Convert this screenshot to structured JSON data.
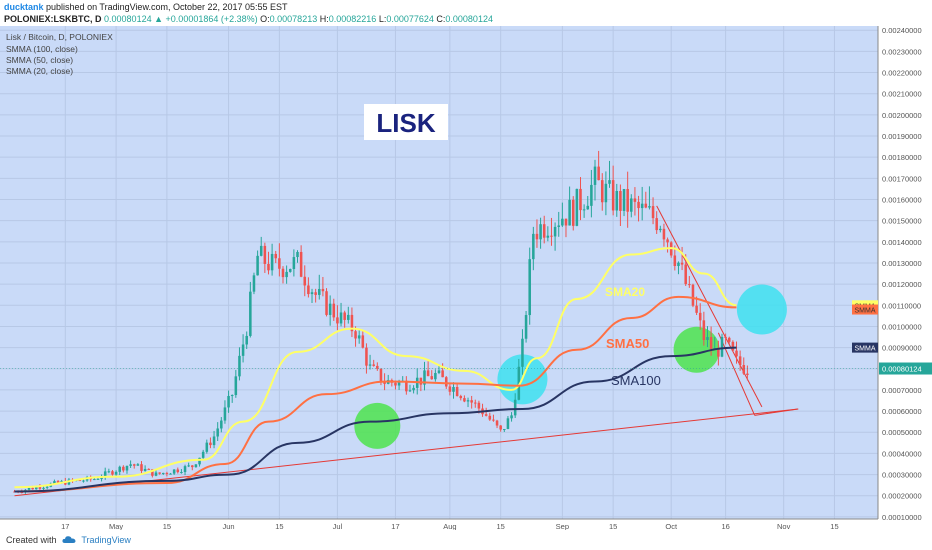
{
  "header": {
    "author": "ducktank",
    "published_text": "published on TradingView.com, October 22, 2017 05:55 EST",
    "symbol": "POLONIEX:LSKBTC, D",
    "last": "0.00080124",
    "change": "+0.00001864 (+2.38%)",
    "open_label": "O:",
    "open": "0.00078213",
    "high_label": "H:",
    "high": "0.00082216",
    "low_label": "L:",
    "low": "0.00077624",
    "close_label": "C:",
    "close": "0.00080124",
    "up_color": "#26a69a"
  },
  "legend": {
    "title": "Lisk / Bitcoin, D, POLONIEX",
    "studies": [
      "SMMA (100, close)",
      "SMMA (50, close)",
      "SMMA (20, close)"
    ]
  },
  "annotation": {
    "title": "LISK",
    "sma20_label": "SMA20",
    "sma50_label": "SMA50",
    "sma100_label": "SMA100"
  },
  "price_badges": {
    "smma_label": "SMMA",
    "last_price": "0.00080124"
  },
  "footer": {
    "created_with": "Created with",
    "brand": "TradingView"
  },
  "colors": {
    "background": "#c9daf8",
    "candle_up": "#26a69a",
    "candle_down": "#ef5350",
    "sma20": "#ffff66",
    "sma50": "#ff7043",
    "sma100": "#283563",
    "trendline": "#e53935",
    "circle_green": "#4ee34e",
    "circle_cyan": "#3ee0f0"
  },
  "chart_data": {
    "type": "line",
    "title": "Lisk / Bitcoin, D, POLONIEX",
    "xlabel": "",
    "ylabel": "",
    "ylim": [
      9e-05,
      0.00242
    ],
    "x_tick_labels": [
      "17",
      "May",
      "15",
      "Jun",
      "15",
      "Jul",
      "17",
      "Aug",
      "15",
      "Sep",
      "15",
      "Oct",
      "16",
      "Nov",
      "15"
    ],
    "x_tick_dates": [
      "2017-04-17",
      "2017-05-01",
      "2017-05-15",
      "2017-06-01",
      "2017-06-15",
      "2017-07-01",
      "2017-07-17",
      "2017-08-01",
      "2017-08-15",
      "2017-09-01",
      "2017-09-15",
      "2017-10-01",
      "2017-10-16",
      "2017-11-01",
      "2017-11-15"
    ],
    "y_ticks": [
      0.0001,
      0.0002,
      0.0003,
      0.0004,
      0.0005,
      0.0006,
      0.0007,
      0.0008,
      0.0009,
      0.001,
      0.0011,
      0.0012,
      0.0013,
      0.0014,
      0.0015,
      0.0016,
      0.0017,
      0.0018,
      0.0019,
      0.002,
      0.0021,
      0.0022,
      0.0023,
      0.0024
    ],
    "y_tick_labels": [
      "0.00010000",
      "0.00020000",
      "0.00030000",
      "0.00040000",
      "0.00050000",
      "0.00060000",
      "0.00070000",
      "0.00080000",
      "0.00090000",
      "0.00100000",
      "0.00110000",
      "0.00120000",
      "0.00130000",
      "0.00140000",
      "0.00150000",
      "0.00160000",
      "0.00170000",
      "0.00180000",
      "0.00190000",
      "0.00200000",
      "0.00210000",
      "0.00220000",
      "0.00230000",
      "0.00240000"
    ],
    "price_anchors": [
      [
        "2017-04-03",
        0.00022
      ],
      [
        "2017-04-15",
        0.00026
      ],
      [
        "2017-04-25",
        0.00028
      ],
      [
        "2017-05-05",
        0.00035
      ],
      [
        "2017-05-12",
        0.0003
      ],
      [
        "2017-05-22",
        0.00034
      ],
      [
        "2017-05-28",
        0.00048
      ],
      [
        "2017-06-02",
        0.00068
      ],
      [
        "2017-06-06",
        0.001
      ],
      [
        "2017-06-09",
        0.00133
      ],
      [
        "2017-06-14",
        0.00128
      ],
      [
        "2017-06-20",
        0.0013
      ],
      [
        "2017-06-25",
        0.00115
      ],
      [
        "2017-07-01",
        0.00105
      ],
      [
        "2017-07-06",
        0.00098
      ],
      [
        "2017-07-10",
        0.0008
      ],
      [
        "2017-07-14",
        0.00074
      ],
      [
        "2017-07-20",
        0.00073
      ],
      [
        "2017-07-28",
        0.00077
      ],
      [
        "2017-08-03",
        0.0007
      ],
      [
        "2017-08-10",
        0.0006
      ],
      [
        "2017-08-15",
        0.0005
      ],
      [
        "2017-08-18",
        0.00058
      ],
      [
        "2017-08-21",
        0.0009
      ],
      [
        "2017-08-24",
        0.00145
      ],
      [
        "2017-08-29",
        0.0015
      ],
      [
        "2017-09-04",
        0.00155
      ],
      [
        "2017-09-10",
        0.00168
      ],
      [
        "2017-09-15",
        0.0016
      ],
      [
        "2017-09-22",
        0.00155
      ],
      [
        "2017-09-28",
        0.0015
      ],
      [
        "2017-10-03",
        0.0013
      ],
      [
        "2017-10-07",
        0.0011
      ],
      [
        "2017-10-10",
        0.00095
      ],
      [
        "2017-10-13",
        0.00088
      ],
      [
        "2017-10-16",
        0.00092
      ],
      [
        "2017-10-19",
        0.00083
      ],
      [
        "2017-10-22",
        0.0008
      ]
    ],
    "series": [
      {
        "name": "SMMA (20, close)",
        "x": [
          "2017-04-03",
          "2017-05-01",
          "2017-05-25",
          "2017-06-05",
          "2017-06-20",
          "2017-07-05",
          "2017-07-20",
          "2017-08-05",
          "2017-08-18",
          "2017-08-25",
          "2017-09-05",
          "2017-09-20",
          "2017-10-01",
          "2017-10-10",
          "2017-10-19"
        ],
        "y": [
          0.00024,
          0.00029,
          0.00037,
          0.00055,
          0.00088,
          0.00099,
          0.00086,
          0.00079,
          0.0007,
          0.00085,
          0.00113,
          0.00134,
          0.00137,
          0.00125,
          0.0011
        ]
      },
      {
        "name": "SMMA (50, close)",
        "x": [
          "2017-04-03",
          "2017-05-15",
          "2017-05-31",
          "2017-06-12",
          "2017-06-28",
          "2017-07-15",
          "2017-08-05",
          "2017-08-20",
          "2017-09-05",
          "2017-09-20",
          "2017-10-03",
          "2017-10-19"
        ],
        "y": [
          0.00022,
          0.00026,
          0.00035,
          0.00055,
          0.00068,
          0.00074,
          0.00073,
          0.00072,
          0.00089,
          0.00104,
          0.00114,
          0.00109
        ]
      },
      {
        "name": "SMMA (100, close)",
        "x": [
          "2017-04-03",
          "2017-05-15",
          "2017-06-01",
          "2017-06-20",
          "2017-07-10",
          "2017-08-01",
          "2017-08-21",
          "2017-09-10",
          "2017-10-01",
          "2017-10-19"
        ],
        "y": [
          0.00022,
          0.00027,
          0.0003,
          0.00045,
          0.00055,
          0.00059,
          0.00061,
          0.00074,
          0.00086,
          0.0009
        ]
      }
    ],
    "trendlines": [
      {
        "start": [
          "2017-04-03",
          0.0002
        ],
        "end": [
          "2017-11-05",
          0.00061
        ]
      },
      {
        "start": [
          "2017-09-27",
          0.00157
        ],
        "end": [
          "2017-10-26",
          0.00062
        ]
      },
      {
        "start": [
          "2017-10-14",
          0.00097
        ],
        "end": [
          "2017-10-24",
          0.00058
        ]
      },
      {
        "start": [
          "2017-10-24",
          0.00058
        ],
        "end": [
          "2017-11-05",
          0.00061
        ]
      }
    ],
    "highlights": [
      {
        "color": "green",
        "x": "2017-07-12",
        "y": 0.00053
      },
      {
        "color": "cyan",
        "x": "2017-08-21",
        "y": 0.00075
      },
      {
        "color": "green",
        "x": "2017-10-08",
        "y": 0.00089
      },
      {
        "color": "cyan",
        "x": "2017-10-26",
        "y": 0.00108
      }
    ],
    "right_badges": [
      {
        "label": "SMMA",
        "value": 0.0011,
        "color": "#ffff66"
      },
      {
        "label": "SMMA",
        "value": 0.00108,
        "color": "#ff7043"
      },
      {
        "label": "SMMA",
        "value": 0.0009,
        "color": "#283563"
      }
    ]
  }
}
